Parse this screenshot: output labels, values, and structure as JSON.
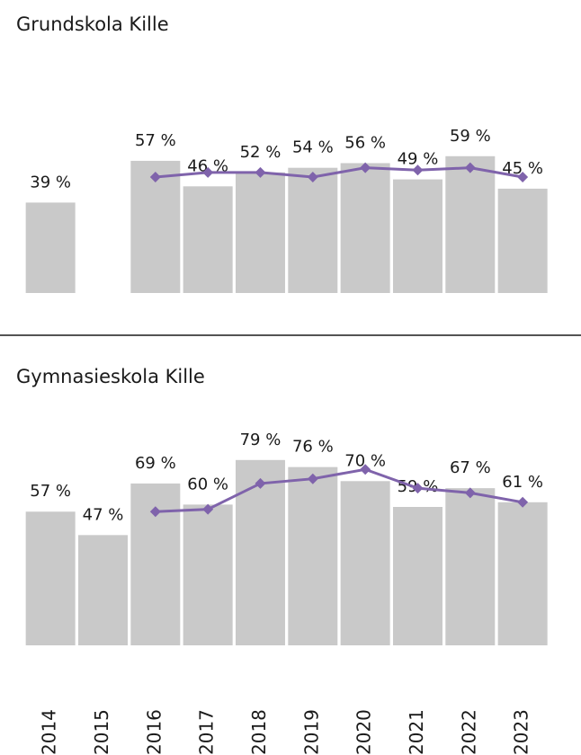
{
  "chart_data": [
    {
      "type": "bar-line",
      "title": "Grundskola Kille",
      "series": [
        {
          "type": "bar",
          "color": "#c9c9c9",
          "values": [
            39,
            null,
            57,
            46,
            52,
            54,
            56,
            49,
            59,
            45
          ],
          "value_labels": [
            "39 %",
            null,
            "57 %",
            "46 %",
            "52 %",
            "54 %",
            "56 %",
            "49 %",
            "59 %",
            "45 %"
          ]
        },
        {
          "type": "line",
          "color": "#7f63ab",
          "values": [
            null,
            null,
            50,
            52,
            52,
            50,
            54,
            53,
            54,
            50
          ]
        }
      ],
      "ylim": [
        0,
        100
      ]
    },
    {
      "type": "bar-line",
      "title": "Gymnasieskola Kille",
      "categories": [
        "2014",
        "2015",
        "2016",
        "2017",
        "2018",
        "2019",
        "2020",
        "2021",
        "2022",
        "2023"
      ],
      "series": [
        {
          "type": "bar",
          "color": "#c9c9c9",
          "values": [
            57,
            47,
            69,
            60,
            79,
            76,
            70,
            59,
            67,
            61
          ],
          "value_labels": [
            "57 %",
            "47 %",
            "69 %",
            "60 %",
            "79 %",
            "76 %",
            "70 %",
            "59 %",
            "67 %",
            "61 %"
          ]
        },
        {
          "type": "line",
          "color": "#7f63ab",
          "values": [
            null,
            null,
            57,
            58,
            69,
            71,
            75,
            67,
            65,
            61
          ]
        }
      ],
      "ylim": [
        0,
        100
      ]
    }
  ]
}
